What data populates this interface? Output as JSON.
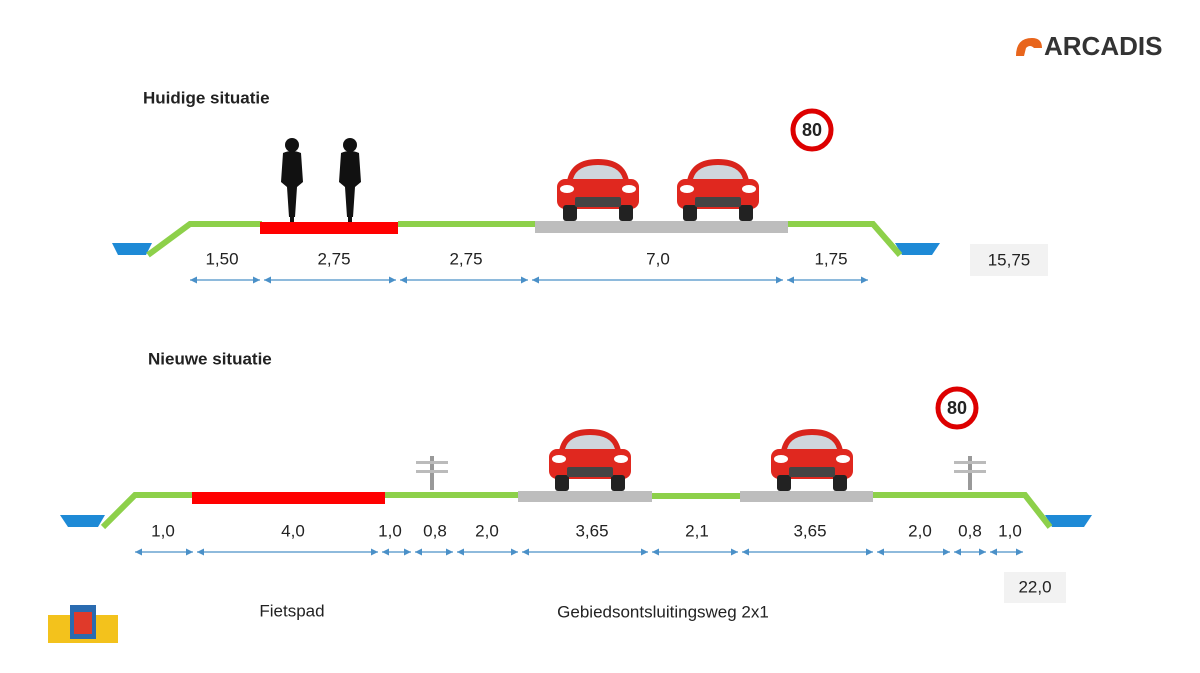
{
  "logo": "ARCADIS",
  "current": {
    "title": "Huidige situatie",
    "speed_sign": "80",
    "widths": [
      "1,50",
      "2,75",
      "2,75",
      "7,0",
      "1,75"
    ],
    "total": "15,75"
  },
  "new": {
    "title": "Nieuwe situatie",
    "speed_sign": "80",
    "widths": [
      "1,0",
      "4,0",
      "1,0",
      "0,8",
      "2,0",
      "3,65",
      "2,1",
      "3,65",
      "2,0",
      "0,8",
      "1,0"
    ],
    "total": "22,0",
    "labels": [
      "Fietspad",
      "Gebiedsontsluitingsweg 2x1"
    ]
  }
}
